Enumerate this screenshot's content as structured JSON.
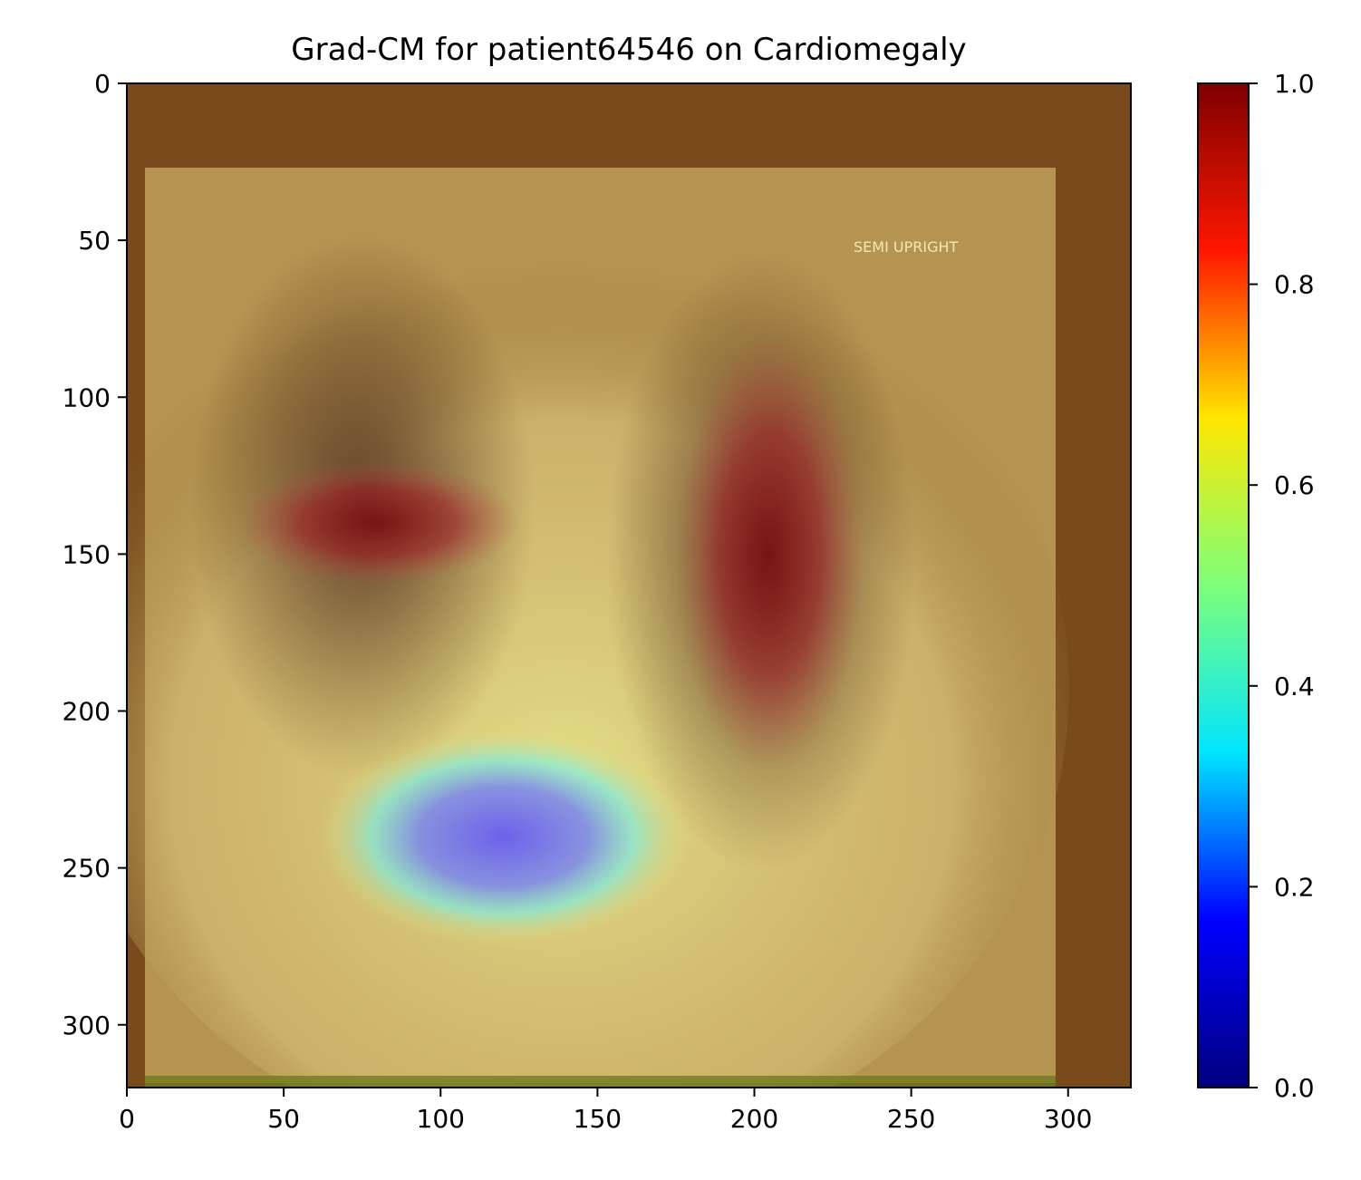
{
  "chart_data": {
    "type": "heatmap",
    "title": "Grad-CM for patient64546 on Cardiomegaly",
    "xlabel": "",
    "ylabel": "",
    "image_extent": {
      "x": [
        0,
        320
      ],
      "y": [
        320,
        0
      ]
    },
    "xticks": [
      0,
      50,
      100,
      150,
      200,
      250,
      300
    ],
    "yticks": [
      0,
      50,
      100,
      150,
      200,
      250,
      300
    ],
    "colorbar": {
      "colormap": "jet",
      "range": [
        0.0,
        1.0
      ],
      "ticks": [
        "0.0",
        "0.2",
        "0.4",
        "0.6",
        "0.8",
        "1.0"
      ],
      "stops": [
        "#00007f",
        "#0000ff",
        "#00e5ff",
        "#7dff7a",
        "#ffe600",
        "#ff1700",
        "#7f0000"
      ]
    },
    "overlay_regions": [
      {
        "name": "low activation",
        "cx": 120,
        "cy": 240,
        "rx": 60,
        "ry": 35,
        "value": 0.2
      },
      {
        "name": "high activation right lung",
        "cx": 80,
        "cy": 140,
        "rx": 45,
        "ry": 20,
        "value": 1.0
      },
      {
        "name": "high activation left lung",
        "cx": 205,
        "cy": 150,
        "rx": 30,
        "ry": 70,
        "value": 1.0
      }
    ],
    "image_annotation": "SEMI UPRIGHT"
  }
}
